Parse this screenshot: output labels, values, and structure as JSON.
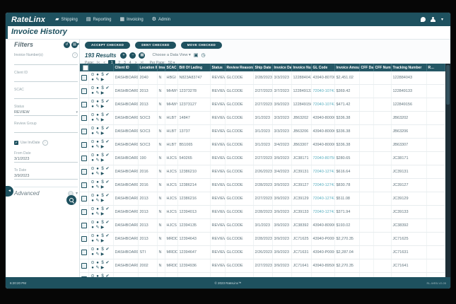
{
  "navbar": {
    "brand": "RateLinx",
    "items": [
      {
        "label": "Shipping",
        "icon": "truck-icon"
      },
      {
        "label": "Reporting",
        "icon": "report-icon"
      },
      {
        "label": "Invoicing",
        "icon": "invoice-icon"
      },
      {
        "label": "Admin",
        "icon": "wrench-icon"
      }
    ]
  },
  "page": {
    "title": "Invoice History"
  },
  "filters": {
    "title": "Filters",
    "invoice_numbers_label": "Invoice Number(s)",
    "client_id_label": "Client ID",
    "scac_label": "SCAC",
    "status_label": "Status",
    "status_value": "REVIEW",
    "review_group_label": "Review Group",
    "use_invdate_label": "Use InvDate",
    "from_date_label": "From Date",
    "from_date_value": "3/1/2023",
    "to_date_label": "To Date",
    "to_date_value": "3/9/2023",
    "advanced_label": "Advanced"
  },
  "toolbar": {
    "accept": "ACCEPT CHECKED",
    "deny": "DENY CHECKED",
    "move": "MOVE CHECKED",
    "results": "193 Results",
    "data_view": "Choose a Data View ▾"
  },
  "pagination": {
    "label": "Page:",
    "first": "|<",
    "prev": "<",
    "pages": [
      "1",
      "2",
      "3",
      "4"
    ],
    "current": "1",
    "next": ">",
    "last": ">|",
    "per_page_label": "Per Page:",
    "per_page": "50 ▾"
  },
  "table": {
    "columns": [
      "",
      "",
      "Client ID",
      "Location ID",
      "Imaged",
      "SCAC",
      "Bill Of Lading",
      "Status",
      "Review Reasons",
      "Ship Date",
      "Invoice Date",
      "Invoice Number",
      "GL Code",
      "Invoice Amount",
      "CFF Date",
      "CFF Number",
      "Tracking Number",
      "R…"
    ],
    "rows": [
      {
        "cells": [
          "DASHBOARD",
          "2040",
          "N",
          "HBGI",
          "N823A83747",
          "REVIEW",
          "GLCODE",
          "2/28/2023",
          "3/3/2023",
          "122884043",
          "43940-80700",
          "$2,451.02",
          "",
          "",
          "122884043"
        ],
        "gl_link": false
      },
      {
        "cells": [
          "DASHBOARD",
          "2013",
          "N",
          "MHWY",
          "12373278",
          "REVIEW",
          "GLCODE",
          "2/27/2023",
          "3/7/2023",
          "122849133",
          "72040-10743",
          "$369.42",
          "",
          "",
          "122849133"
        ],
        "gl_link": true
      },
      {
        "cells": [
          "DASHBOARD",
          "2013",
          "N",
          "MHWY",
          "12373127",
          "REVIEW",
          "GLCODE",
          "2/27/2023",
          "3/9/2023",
          "122849156",
          "72040-10743",
          "$471.42",
          "",
          "",
          "122849156"
        ],
        "gl_link": true
      },
      {
        "cells": [
          "DASHBOARD",
          "SOC3",
          "N",
          "HLBT",
          "14847",
          "REVIEW",
          "GLCODE",
          "3/1/2023",
          "3/3/2023",
          "JB63202",
          "43940-80000",
          "$336.38",
          "",
          "",
          "JB63202"
        ],
        "gl_link": false
      },
      {
        "cells": [
          "DASHBOARD",
          "SOC3",
          "N",
          "HLBT",
          "13737",
          "REVIEW",
          "GLCODE",
          "3/1/2023",
          "3/3/2023",
          "JB63206",
          "43940-80006",
          "$336.38",
          "",
          "",
          "JB63206"
        ],
        "gl_link": false
      },
      {
        "cells": [
          "DASHBOARD",
          "SOC3",
          "N",
          "HLBT",
          "B51065",
          "REVIEW",
          "GLCODE",
          "3/1/2023",
          "3/4/2023",
          "JB63307",
          "43940-80000",
          "$336.38",
          "",
          "",
          "JB63307"
        ],
        "gl_link": false
      },
      {
        "cells": [
          "DASHBOARD",
          "190",
          "N",
          "HJCS",
          "540265",
          "REVIEW",
          "GLCODE",
          "2/27/2023",
          "3/9/2023",
          "JC38171",
          "72040-80750",
          "$280.65",
          "",
          "",
          "JC38171"
        ],
        "gl_link": true
      },
      {
        "cells": [
          "DASHBOARD",
          "2016",
          "N",
          "HJCS",
          "12386210",
          "REVIEW",
          "GLCODE",
          "2/26/2023",
          "3/4/2023",
          "JC39131",
          "72040-12743",
          "$616.64",
          "",
          "",
          "JC39131"
        ],
        "gl_link": true
      },
      {
        "cells": [
          "DASHBOARD",
          "2016",
          "N",
          "HJCS",
          "12386214",
          "REVIEW",
          "GLCODE",
          "2/28/2023",
          "3/9/2023",
          "JC39127",
          "72040-12743",
          "$830.78",
          "",
          "",
          "JC39127"
        ],
        "gl_link": true
      },
      {
        "cells": [
          "DASHBOARD",
          "2013",
          "N",
          "HJCS",
          "12386216",
          "REVIEW",
          "GLCODE",
          "2/27/2023",
          "3/9/2023",
          "JC39129",
          "72040-12743",
          "$511.08",
          "",
          "",
          "JC39129"
        ],
        "gl_link": true
      },
      {
        "cells": [
          "DASHBOARD",
          "2013",
          "N",
          "HJCS",
          "12394013",
          "REVIEW",
          "GLCODE",
          "2/28/2023",
          "3/9/2023",
          "JC39133",
          "72040-12743",
          "$371.94",
          "",
          "",
          "JC39133"
        ],
        "gl_link": true
      },
      {
        "cells": [
          "DASHBOARD",
          "2013",
          "N",
          "HJCS",
          "12394135",
          "REVIEW",
          "GLCODE",
          "3/1/2023",
          "3/9/2023",
          "JC38392",
          "43940-80900",
          "$193.02",
          "",
          "",
          "JC38392"
        ],
        "gl_link": false
      },
      {
        "cells": [
          "DASHBOARD",
          "2013",
          "N",
          "MRDD",
          "12394643",
          "REVIEW",
          "GLCODE",
          "2/28/2023",
          "3/9/2023",
          "JC71625",
          "43940-P0000",
          "$2,270.35",
          "",
          "",
          "JC71625"
        ],
        "gl_link": false
      },
      {
        "cells": [
          "DASHBOARD",
          "STI",
          "N",
          "MRDD",
          "12394647",
          "REVIEW",
          "GLCODE",
          "2/26/2023",
          "3/9/2023",
          "JC71631",
          "43940-P0000",
          "$2,287.04",
          "",
          "",
          "JC71631"
        ],
        "gl_link": false
      },
      {
        "cells": [
          "DASHBOARD",
          "2002",
          "N",
          "MRDD",
          "12394936",
          "REVIEW",
          "GLCODE",
          "2/27/2023",
          "3/9/2023",
          "JC71641",
          "43940-89500",
          "$2,270.35",
          "",
          "",
          "JC71641"
        ],
        "gl_link": false
      },
      {
        "cells": [
          "DASHBOARD",
          "194",
          "N",
          "MRDD",
          "12403918",
          "REVIEW",
          "GLCODE",
          "3/1/2023",
          "3/9/2023",
          "JB67679",
          "43940-89900",
          "$1,524.94",
          "",
          "",
          "JB67679"
        ],
        "gl_link": false
      }
    ]
  },
  "footer": {
    "time": "6:20:20 PM",
    "copyright": "© 2023 RateLinx™",
    "build": "RL-WEB-V2-05"
  }
}
